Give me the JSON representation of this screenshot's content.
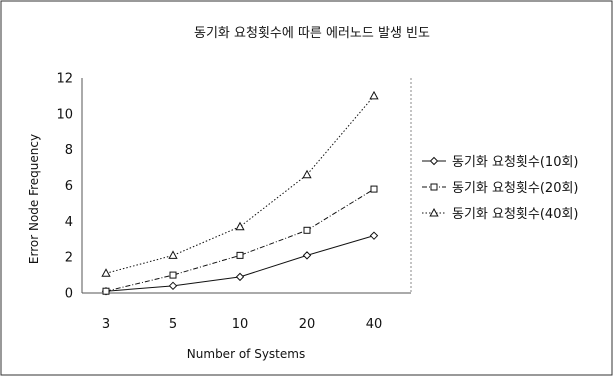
{
  "chart_data": {
    "type": "line",
    "title": "동기화 요청횟수에 따른 에러노드 발생 빈도",
    "xlabel": "Number of Systems",
    "ylabel": "Error Node Frequency",
    "categories": [
      "3",
      "5",
      "10",
      "20",
      "40"
    ],
    "ylim": [
      0,
      12
    ],
    "yticks": [
      "0",
      "2",
      "4",
      "6",
      "8",
      "10",
      "12"
    ],
    "grid": false,
    "legend_position": "right",
    "series": [
      {
        "name": "동기화 요청횟수(10회)",
        "marker": "diamond",
        "line_style": "solid",
        "values": [
          0.1,
          0.4,
          0.9,
          2.1,
          3.2
        ]
      },
      {
        "name": "동기화 요청횟수(20회)",
        "marker": "square",
        "line_style": "dash-dot",
        "values": [
          0.1,
          1.0,
          2.1,
          3.5,
          5.8
        ]
      },
      {
        "name": "동기화 요청횟수(40회)",
        "marker": "triangle",
        "line_style": "dotted",
        "values": [
          1.1,
          2.1,
          3.7,
          6.6,
          11.0
        ]
      }
    ],
    "colors": {
      "series": "#111111",
      "frame": "#333333",
      "axis": "#555555"
    }
  }
}
